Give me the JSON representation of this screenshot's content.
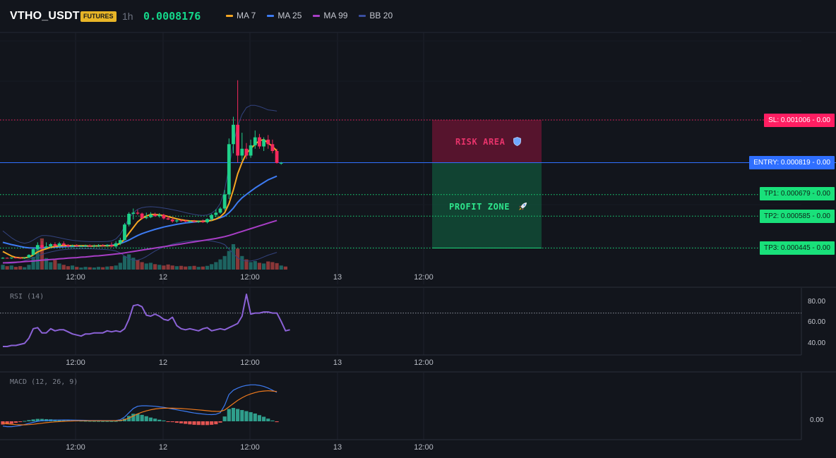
{
  "header": {
    "symbol": "VTHO_USDT",
    "badge": "FUTURES",
    "timeframe": "1h",
    "price": "0.0008176",
    "legend": [
      {
        "label": "MA 7",
        "color": "#f5a623"
      },
      {
        "label": "MA 25",
        "color": "#3d7bf2"
      },
      {
        "label": "MA 99",
        "color": "#a83ec6"
      },
      {
        "label": "BB 20",
        "color": "#3a4fa0"
      }
    ]
  },
  "levels": {
    "sl": {
      "label": "SL: 0.001006 - 0.00",
      "value": 0.001006,
      "color": "#ff1e62"
    },
    "entry": {
      "label": "ENTRY: 0.000819 - 0.00",
      "value": 0.000819,
      "color": "#2f6fff"
    },
    "tp1": {
      "label": "TP1: 0.000679 - 0.00",
      "value": 0.000679,
      "color": "#19e07a"
    },
    "tp2": {
      "label": "TP2: 0.000585 - 0.00",
      "value": 0.000585,
      "color": "#19e07a"
    },
    "tp3": {
      "label": "TP3: 0.000445 - 0.00",
      "value": 0.000445,
      "color": "#19e07a"
    }
  },
  "zones": {
    "risk_label": "RISK AREA",
    "risk_icon": "shield-icon",
    "profit_label": "PROFIT ZONE",
    "profit_icon": "rocket-icon"
  },
  "x_axis_labels": [
    "12:00",
    "12",
    "12:00",
    "13",
    "12:00"
  ],
  "rsi": {
    "title": "RSI (14)",
    "ticks": [
      "80.00",
      "60.00",
      "40.00"
    ],
    "overbought": 70,
    "values": [
      38,
      38,
      39,
      39,
      40,
      41,
      46,
      55,
      56,
      51,
      51,
      55,
      53,
      54,
      54,
      52,
      50,
      49,
      48,
      50,
      50,
      51,
      51,
      51,
      53,
      52,
      53,
      52,
      55,
      64,
      77,
      78,
      76,
      68,
      67,
      69,
      67,
      64,
      63,
      66,
      58,
      55,
      54,
      55,
      54,
      53,
      55,
      56,
      53,
      54,
      55,
      54,
      56,
      58,
      60,
      67,
      88,
      69,
      70,
      70,
      71,
      71,
      70,
      70,
      62,
      53,
      54
    ]
  },
  "macd": {
    "title": "MACD (12, 26, 9)",
    "tick": "0.00",
    "colors": {
      "macd": "#3d7bf2",
      "signal": "#f07a1c",
      "hist_pos": "#26a69a",
      "hist_neg": "#ef5350"
    }
  },
  "chart_data": {
    "type": "candlestick",
    "series_names": [
      "MA 7",
      "MA 25",
      "MA 99",
      "BB 20"
    ],
    "candles": [
      [
        0.000402,
        0.000405,
        0.000398,
        0.000402
      ],
      [
        0.000402,
        0.000404,
        0.000399,
        0.000401
      ],
      [
        0.000401,
        0.000404,
        0.000398,
        0.000403
      ],
      [
        0.000403,
        0.000406,
        0.0004,
        0.000402
      ],
      [
        0.000402,
        0.000405,
        0.000397,
        0.0004
      ],
      [
        0.0004,
        0.000404,
        0.000397,
        0.000403
      ],
      [
        0.000403,
        0.000418,
        0.000402,
        0.000415
      ],
      [
        0.000415,
        0.000446,
        0.000413,
        0.00044
      ],
      [
        0.00044,
        0.00047,
        0.000436,
        0.000458
      ],
      [
        0.000458,
        0.000476,
        0.00044,
        0.000446
      ],
      [
        0.000446,
        0.00047,
        0.000443,
        0.000452
      ],
      [
        0.000452,
        0.000467,
        0.000445,
        0.000462
      ],
      [
        0.000462,
        0.00047,
        0.00045,
        0.000455
      ],
      [
        0.000455,
        0.000472,
        0.000452,
        0.000465
      ],
      [
        0.000465,
        0.000474,
        0.00045,
        0.000458
      ],
      [
        0.000458,
        0.000462,
        0.000448,
        0.000452
      ],
      [
        0.000452,
        0.00046,
        0.000448,
        0.000456
      ],
      [
        0.000456,
        0.000462,
        0.00045,
        0.000453
      ],
      [
        0.000453,
        0.000458,
        0.000448,
        0.000454
      ],
      [
        0.000454,
        0.00046,
        0.00045,
        0.000456
      ],
      [
        0.000456,
        0.000461,
        0.00045,
        0.000452
      ],
      [
        0.000452,
        0.00046,
        0.000448,
        0.000455
      ],
      [
        0.000455,
        0.000462,
        0.00045,
        0.000457
      ],
      [
        0.000457,
        0.000462,
        0.000452,
        0.000454
      ],
      [
        0.000454,
        0.000462,
        0.00045,
        0.000458
      ],
      [
        0.000458,
        0.00047,
        0.000448,
        0.000452
      ],
      [
        0.000452,
        0.000475,
        0.000446,
        0.000466
      ],
      [
        0.000466,
        0.00049,
        0.000458,
        0.00048
      ],
      [
        0.00048,
        0.000555,
        0.000478,
        0.000548
      ],
      [
        0.000548,
        0.000602,
        0.00054,
        0.000595
      ],
      [
        0.000595,
        0.000618,
        0.00057,
        0.0006
      ],
      [
        0.0006,
        0.000612,
        0.00059,
        0.000596
      ],
      [
        0.000596,
        0.0006,
        0.00057,
        0.000576
      ],
      [
        0.000576,
        0.0006,
        0.000572,
        0.00058
      ],
      [
        0.00058,
        0.000602,
        0.000576,
        0.000592
      ],
      [
        0.000592,
        0.0006,
        0.000582,
        0.000585
      ],
      [
        0.000585,
        0.000598,
        0.000578,
        0.00059
      ],
      [
        0.00059,
        0.000595,
        0.00057,
        0.000575
      ],
      [
        0.000575,
        0.000586,
        0.000568,
        0.00057
      ],
      [
        0.00057,
        0.000578,
        0.000556,
        0.000562
      ],
      [
        0.000562,
        0.000572,
        0.000556,
        0.000566
      ],
      [
        0.000566,
        0.000571,
        0.00056,
        0.000565
      ],
      [
        0.000565,
        0.000569,
        0.000558,
        0.000561
      ],
      [
        0.000561,
        0.000566,
        0.000556,
        0.000563
      ],
      [
        0.000563,
        0.000568,
        0.000556,
        0.00056
      ],
      [
        0.00056,
        0.000566,
        0.000555,
        0.000562
      ],
      [
        0.000562,
        0.00057,
        0.000555,
        0.000558
      ],
      [
        0.000558,
        0.000575,
        0.000553,
        0.000572
      ],
      [
        0.000572,
        0.000595,
        0.000565,
        0.00059
      ],
      [
        0.00059,
        0.000615,
        0.00058,
        0.0006
      ],
      [
        0.0006,
        0.000625,
        0.000595,
        0.000618
      ],
      [
        0.000618,
        0.0007,
        0.00061,
        0.00068
      ],
      [
        0.00068,
        0.000925,
        0.00066,
        0.0009
      ],
      [
        0.0009,
        0.00102,
        0.00086,
        0.000985
      ],
      [
        0.000985,
        0.00118,
        0.00082,
        0.00085
      ],
      [
        0.00085,
        0.00095,
        0.00083,
        0.00088
      ],
      [
        0.00088,
        0.000905,
        0.000835,
        0.00085
      ],
      [
        0.00085,
        0.00092,
        0.00084,
        0.000895
      ],
      [
        0.000895,
        0.00096,
        0.00088,
        0.00093
      ],
      [
        0.00093,
        0.000945,
        0.00088,
        0.00089
      ],
      [
        0.00089,
        0.00093,
        0.00087,
        0.00092
      ],
      [
        0.00092,
        0.00094,
        0.00088,
        0.0009
      ],
      [
        0.0009,
        0.00092,
        0.00086,
        0.00087
      ],
      [
        0.00087,
        0.00088,
        0.000815,
        0.000818
      ],
      [
        0.000818,
        0.000822,
        0.00081,
        0.000818
      ]
    ],
    "volume": [
      14,
      10,
      12,
      8,
      10,
      7,
      14,
      38,
      60,
      92,
      34,
      22,
      28,
      18,
      14,
      10,
      12,
      8,
      6,
      8,
      7,
      6,
      8,
      7,
      9,
      10,
      12,
      20,
      40,
      45,
      35,
      28,
      22,
      18,
      20,
      16,
      14,
      12,
      15,
      12,
      10,
      11,
      9,
      10,
      11,
      8,
      9,
      11,
      16,
      22,
      30,
      40,
      55,
      75,
      62,
      40,
      30,
      22,
      25,
      20,
      18,
      24,
      22,
      19,
      12,
      9
    ],
    "ma7": [
      0.00043,
      0.00042,
      0.00041,
      0.000404,
      0.000402,
      0.000402,
      0.000405,
      0.000415,
      0.000428,
      0.000436,
      0.000442,
      0.000448,
      0.000452,
      0.000455,
      0.000456,
      0.000456,
      0.000455,
      0.000455,
      0.000455,
      0.000455,
      0.000454,
      0.000454,
      0.000455,
      0.000455,
      0.000455,
      0.000455,
      0.000458,
      0.000465,
      0.000485,
      0.00051,
      0.000535,
      0.00056,
      0.000575,
      0.000585,
      0.000592,
      0.000592,
      0.00059,
      0.000588,
      0.000583,
      0.000578,
      0.000573,
      0.000569,
      0.000566,
      0.000564,
      0.000563,
      0.000562,
      0.000562,
      0.000563,
      0.000566,
      0.000572,
      0.000582,
      0.0006,
      0.00064,
      0.0007,
      0.00077,
      0.00082,
      0.00086,
      0.00088,
      0.0009,
      0.000915,
      0.00092,
      0.000905,
      0.00089,
      0.00087
    ],
    "ma25": [
      0.00047,
      0.000465,
      0.00046,
      0.000456,
      0.000452,
      0.000448,
      0.000446,
      0.000445,
      0.000445,
      0.000446,
      0.000447,
      0.000448,
      0.000449,
      0.00045,
      0.000451,
      0.000452,
      0.000452,
      0.000453,
      0.000453,
      0.000453,
      0.000453,
      0.000454,
      0.000454,
      0.000455,
      0.000456,
      0.000457,
      0.00046,
      0.000465,
      0.000472,
      0.00048,
      0.00049,
      0.0005,
      0.000508,
      0.000515,
      0.000521,
      0.000527,
      0.000532,
      0.000537,
      0.000541,
      0.000545,
      0.000549,
      0.000552,
      0.000555,
      0.000557,
      0.000559,
      0.000561,
      0.000563,
      0.000565,
      0.000568,
      0.000572,
      0.000578,
      0.000585,
      0.0006,
      0.00062,
      0.000645,
      0.000665,
      0.00068,
      0.000694,
      0.000708,
      0.00072,
      0.000732,
      0.000744,
      0.000752,
      0.00076
    ],
    "ma99": [
      0.00038,
      0.000381,
      0.000382,
      0.000383,
      0.000384,
      0.000386,
      0.000387,
      0.000388,
      0.00039,
      0.000392,
      0.000393,
      0.000395,
      0.000396,
      0.000398,
      0.000399,
      0.000401,
      0.000402,
      0.000403,
      0.000405,
      0.000406,
      0.000408,
      0.00041,
      0.000411,
      0.000413,
      0.000415,
      0.000417,
      0.000419,
      0.000421,
      0.000424,
      0.000427,
      0.00043,
      0.000433,
      0.000436,
      0.000439,
      0.000442,
      0.000445,
      0.000448,
      0.000451,
      0.000454,
      0.000457,
      0.00046,
      0.000463,
      0.000466,
      0.000469,
      0.000472,
      0.000475,
      0.000478,
      0.000481,
      0.000484,
      0.000487,
      0.000491,
      0.000495,
      0.0005,
      0.000506,
      0.000512,
      0.000518,
      0.000524,
      0.00053,
      0.000536,
      0.000542,
      0.000548,
      0.000554,
      0.00056,
      0.000566
    ],
    "bb_upper": [
      0.00052,
      0.000505,
      0.00049,
      0.000478,
      0.00047,
      0.000466,
      0.00047,
      0.00048,
      0.000492,
      0.0005,
      0.0005,
      0.000498,
      0.000494,
      0.00049,
      0.000486,
      0.000482,
      0.000479,
      0.000477,
      0.000475,
      0.000474,
      0.000473,
      0.000473,
      0.000473,
      0.000473,
      0.000474,
      0.000476,
      0.000485,
      0.000505,
      0.00054,
      0.000575,
      0.0006,
      0.000615,
      0.000622,
      0.000625,
      0.000626,
      0.000625,
      0.000623,
      0.00062,
      0.000617,
      0.000613,
      0.000609,
      0.000605,
      0.0006,
      0.000596,
      0.000592,
      0.000589,
      0.000588,
      0.00059,
      0.000598,
      0.000612,
      0.00064,
      0.0007,
      0.0008,
      0.0009,
      0.00098,
      0.00103,
      0.00106,
      0.00107,
      0.00107,
      0.001065,
      0.001058,
      0.00105,
      0.001048,
      0.001045
    ],
    "bb_lower": [
      0.00038,
      0.000378,
      0.000378,
      0.00038,
      0.000384,
      0.00039,
      0.000396,
      0.000402,
      0.00041,
      0.000417,
      0.000423,
      0.000428,
      0.000432,
      0.000436,
      0.000438,
      0.00044,
      0.000441,
      0.000442,
      0.000442,
      0.000442,
      0.000442,
      0.000441,
      0.00044,
      0.000439,
      0.000438,
      0.000436,
      0.000432,
      0.000424,
      0.00041,
      0.000398,
      0.000392,
      0.000392,
      0.000398,
      0.000408,
      0.00042,
      0.000432,
      0.000442,
      0.00045,
      0.000456,
      0.000462,
      0.000467,
      0.000471,
      0.000474,
      0.000476,
      0.000477,
      0.000478,
      0.000478,
      0.000478,
      0.000476,
      0.000472,
      0.000468,
      0.00046,
      0.00044,
      0.00042,
      0.000402,
      0.000392,
      0.000388,
      0.000388,
      0.000392,
      0.000398,
      0.000406,
      0.000414,
      0.00042,
      0.000426
    ],
    "macd_line": [
      -0.9,
      -1.0,
      -1.0,
      -0.9,
      -0.8,
      -0.6,
      -0.4,
      -0.2,
      0.0,
      0.1,
      0.15,
      0.2,
      0.22,
      0.24,
      0.25,
      0.25,
      0.24,
      0.22,
      0.2,
      0.18,
      0.16,
      0.15,
      0.14,
      0.13,
      0.13,
      0.13,
      0.15,
      0.3,
      0.8,
      1.6,
      2.4,
      2.8,
      2.9,
      2.9,
      2.85,
      2.8,
      2.7,
      2.6,
      2.45,
      2.3,
      2.15,
      2.0,
      1.85,
      1.7,
      1.55,
      1.45,
      1.35,
      1.28,
      1.25,
      1.3,
      1.6,
      3.0,
      5.0,
      5.8,
      6.2,
      6.5,
      6.7,
      6.8,
      6.8,
      6.7,
      6.5,
      6.2,
      5.8,
      5.4
    ],
    "signal_line": [
      -0.3,
      -0.45,
      -0.55,
      -0.62,
      -0.66,
      -0.66,
      -0.62,
      -0.55,
      -0.45,
      -0.35,
      -0.25,
      -0.17,
      -0.1,
      -0.05,
      0.0,
      0.04,
      0.07,
      0.09,
      0.1,
      0.11,
      0.11,
      0.11,
      0.11,
      0.11,
      0.11,
      0.11,
      0.12,
      0.15,
      0.3,
      0.6,
      1.0,
      1.4,
      1.7,
      1.95,
      2.15,
      2.3,
      2.4,
      2.45,
      2.46,
      2.45,
      2.42,
      2.38,
      2.33,
      2.27,
      2.2,
      2.13,
      2.05,
      1.98,
      1.9,
      1.85,
      1.84,
      2.1,
      2.7,
      3.3,
      3.9,
      4.4,
      4.8,
      5.1,
      5.35,
      5.55,
      5.65,
      5.7,
      5.65,
      5.55
    ]
  }
}
